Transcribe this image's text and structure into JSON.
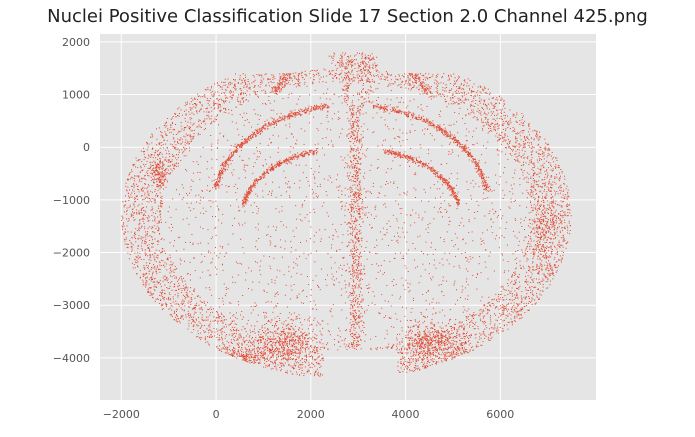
{
  "chart_data": {
    "type": "scatter",
    "title": "Nuclei Positive Classification Slide  17 Section 2.0 Channel 425.png",
    "xlabel": "",
    "ylabel": "",
    "xlim": [
      -2450,
      8020
    ],
    "ylim": [
      -4800,
      2150
    ],
    "xticks": [
      -2000,
      0,
      2000,
      4000,
      6000
    ],
    "yticks": [
      2000,
      1000,
      0,
      -1000,
      -2000,
      -3000,
      -4000
    ],
    "xtick_labels": [
      "−2000",
      "0",
      "2000",
      "4000",
      "6000"
    ],
    "ytick_labels": [
      "2000",
      "1000",
      "0",
      "−1000",
      "−2000",
      "−3000",
      "−4000"
    ],
    "grid": true,
    "style": "ggplot",
    "series": [
      {
        "color": "#e24a33",
        "marker": "point",
        "approx_point_count": 12000,
        "extent": {
          "x": [
            -2000,
            7500
          ],
          "y": [
            -4450,
            1800
          ]
        },
        "shape": "coronal brain section: outer cortex ring, dense midline, hippocampal arcs near (1000,-500) and (5100,-500), thalamic arcs, dense basal clusters near (1500,-3700) and (5500,-3700)"
      }
    ]
  }
}
